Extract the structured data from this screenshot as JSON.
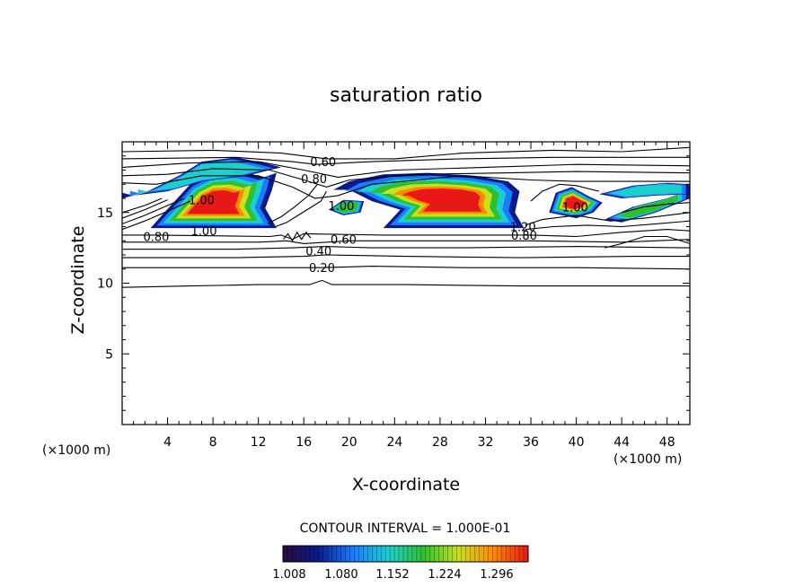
{
  "chart_data": {
    "type": "contour",
    "title": "saturation ratio",
    "xlabel": "X-coordinate",
    "ylabel": "Z-coordinate",
    "x_unit": "(×1000 m)",
    "y_unit": "(×1000 m)",
    "xlim": [
      0,
      50
    ],
    "ylim": [
      0,
      20
    ],
    "x_ticks": [
      4,
      8,
      12,
      16,
      20,
      24,
      28,
      32,
      36,
      40,
      44,
      48
    ],
    "y_ticks": [
      5,
      10,
      15
    ],
    "contour_interval_text": "CONTOUR INTERVAL = 1.000E-01",
    "colorbar": {
      "labels": [
        "1.008",
        "1.080",
        "1.152",
        "1.224",
        "1.296"
      ],
      "colors": [
        "#2a0a3a",
        "#0a1a8a",
        "#1c7cff",
        "#1ccfcf",
        "#2ec02e",
        "#c8e01e",
        "#ff8a00",
        "#e81818"
      ]
    },
    "contour_labels": [
      {
        "text": "0.60",
        "x": 17.7,
        "z": 18.6
      },
      {
        "text": "0.80",
        "x": 16.9,
        "z": 17.4
      },
      {
        "text": "1.00",
        "x": 19.3,
        "z": 15.5
      },
      {
        "text": "1.00",
        "x": 7.2,
        "z": 13.7
      },
      {
        "text": "0.80",
        "x": 3.0,
        "z": 13.3
      },
      {
        "text": "0.60",
        "x": 19.5,
        "z": 13.1
      },
      {
        "text": "0.40",
        "x": 17.3,
        "z": 12.3
      },
      {
        "text": "0.20",
        "x": 17.6,
        "z": 11.1
      },
      {
        "text": "1.20",
        "x": 35.3,
        "z": 14.0
      },
      {
        "text": "0.80",
        "x": 35.4,
        "z": 13.4
      },
      {
        "text": "1.00",
        "x": 39.9,
        "z": 15.4
      },
      {
        "text": "1.00",
        "x": 7.0,
        "z": 15.9
      }
    ]
  }
}
